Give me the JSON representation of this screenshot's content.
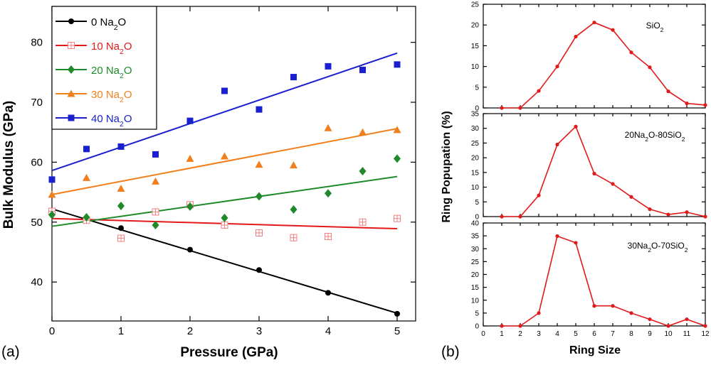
{
  "panel_a_label": "(a)",
  "panel_b_label": "(b)",
  "chart_data": [
    {
      "type": "scatter",
      "title": "",
      "xlabel": "Pressure (GPa)",
      "ylabel": "Bulk Modulus (GPa)",
      "xlim": [
        0,
        5
      ],
      "ylim": [
        33.5,
        86
      ],
      "xticks": [
        "0",
        "1",
        "2",
        "3",
        "4",
        "5"
      ],
      "yticks": [
        "40",
        "50",
        "60",
        "70",
        "80"
      ],
      "legend_position": "top-left",
      "series": [
        {
          "name": "0 Na2O",
          "label_main": "0 Na",
          "label_sub": "2",
          "label_tail": "O",
          "color": "#000000",
          "marker": "circle",
          "x": [
            0,
            1,
            2,
            3,
            4,
            5
          ],
          "y": [
            51.8,
            49,
            45.4,
            42,
            38.2,
            34.7
          ],
          "fit": [
            52.2,
            34.8
          ]
        },
        {
          "name": "10 Na2O",
          "label_main": "10 Na",
          "label_sub": "2",
          "label_tail": "O",
          "color": "#e31a1c",
          "marker": "square-open",
          "x": [
            0,
            0.5,
            1,
            1.5,
            2,
            2.5,
            3,
            3.5,
            4,
            4.5,
            5
          ],
          "y": [
            51.8,
            50.3,
            47.3,
            51.7,
            52.9,
            49.5,
            48.2,
            47.4,
            47.6,
            50,
            50.6
          ],
          "fit": [
            50.6,
            48.9
          ]
        },
        {
          "name": "20 Na2O",
          "label_main": "20 Na",
          "label_sub": "2",
          "label_tail": "O",
          "color": "#1f8a2a",
          "marker": "diamond",
          "x": [
            0,
            0.5,
            1,
            1.5,
            2,
            2.5,
            3,
            3.5,
            4,
            4.5,
            5
          ],
          "y": [
            51.2,
            50.8,
            52.7,
            49.5,
            52.6,
            50.7,
            54.3,
            52.1,
            54.8,
            58.5,
            60.6
          ],
          "fit": [
            49.3,
            57.6
          ]
        },
        {
          "name": "30 Na2O",
          "label_main": "30 Na",
          "label_sub": "2",
          "label_tail": "O",
          "color": "#f07f1c",
          "marker": "triangle",
          "x": [
            0,
            0.5,
            1,
            1.5,
            2,
            2.5,
            3,
            3.5,
            4,
            4.5,
            5
          ],
          "y": [
            54.6,
            57.4,
            55.6,
            56.8,
            60.6,
            61,
            59.6,
            59.5,
            65.7,
            65,
            65.4
          ],
          "fit": [
            54.6,
            65.6
          ]
        },
        {
          "name": "40 Na2O",
          "label_main": "40 Na",
          "label_sub": "2",
          "label_tail": "O",
          "color": "#1a1fd0",
          "marker": "square",
          "x": [
            0,
            0.5,
            1,
            1.5,
            2,
            2.5,
            3,
            3.5,
            4,
            4.5,
            5
          ],
          "y": [
            57.1,
            62.2,
            62.6,
            61.3,
            66.9,
            71.9,
            68.8,
            74.2,
            76,
            75.4,
            76.3
          ],
          "fit": [
            58.6,
            78.2
          ]
        }
      ]
    },
    {
      "type": "line",
      "title": "",
      "xlabel": "Ring Size",
      "ylabel": "Ring Popupation (%)",
      "xlim": [
        0,
        12
      ],
      "xticks": [
        "0",
        "1",
        "2",
        "3",
        "4",
        "5",
        "6",
        "7",
        "8",
        "9",
        "10",
        "11",
        "12"
      ],
      "color": "#e31a1c",
      "panels": [
        {
          "label_main": "SiO",
          "label_sub": "2",
          "label_tail": "",
          "ylim": [
            0,
            25
          ],
          "yticks": [
            "0",
            "5",
            "10",
            "15",
            "20",
            "25"
          ],
          "x": [
            1,
            2,
            3,
            4,
            5,
            6,
            7,
            8,
            9,
            10,
            11,
            12
          ],
          "y": [
            0,
            0,
            4.1,
            10,
            17.2,
            20.6,
            18.8,
            13.4,
            9.8,
            4,
            1.1,
            0.7
          ]
        },
        {
          "label_main": "20Na",
          "label_sub": "2",
          "label_tail": "O-80SiO",
          "label_sub2": "2",
          "ylim": [
            0,
            35
          ],
          "yticks": [
            "0",
            "5",
            "10",
            "15",
            "20",
            "25",
            "30",
            "35"
          ],
          "x": [
            1,
            2,
            3,
            4,
            5,
            6,
            7,
            8,
            9,
            10,
            11,
            12
          ],
          "y": [
            0,
            0,
            7.2,
            24.5,
            30.6,
            14.6,
            11.1,
            6.7,
            2.5,
            0.7,
            1.5,
            0
          ]
        },
        {
          "label_main": "30Na",
          "label_sub": "2",
          "label_tail": "O-70SiO",
          "label_sub2": "2",
          "ylim": [
            0,
            40
          ],
          "yticks": [
            "0",
            "5",
            "10",
            "15",
            "20",
            "25",
            "30",
            "35",
            "40"
          ],
          "x": [
            1,
            2,
            3,
            4,
            5,
            6,
            7,
            8,
            9,
            10,
            11,
            12
          ],
          "y": [
            0,
            0,
            5,
            34.9,
            32.3,
            7.8,
            7.8,
            5,
            2.6,
            0,
            2.6,
            0
          ]
        }
      ]
    }
  ]
}
